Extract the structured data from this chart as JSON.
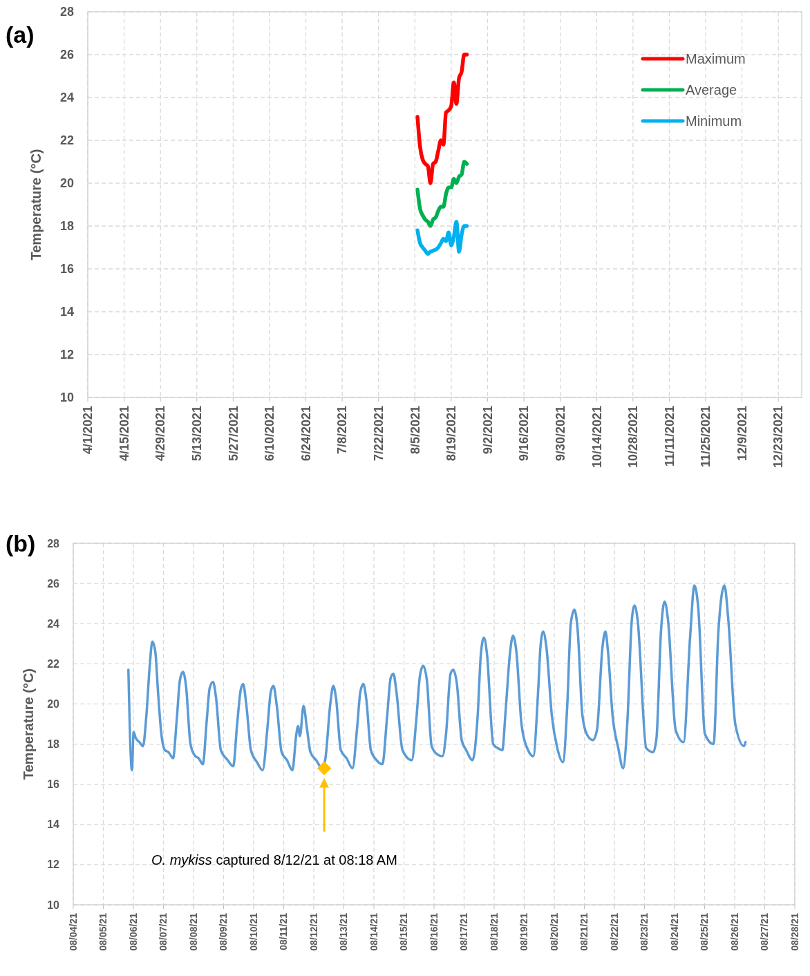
{
  "chart_data": [
    {
      "type": "line",
      "annotations": [
        "(a)"
      ],
      "ylabel": "Temperature (°C)",
      "x": [
        "2021-08-06",
        "2021-08-07",
        "2021-08-08",
        "2021-08-09",
        "2021-08-10",
        "2021-08-11",
        "2021-08-12",
        "2021-08-13",
        "2021-08-14",
        "2021-08-15",
        "2021-08-16",
        "2021-08-17",
        "2021-08-18",
        "2021-08-19",
        "2021-08-20",
        "2021-08-21",
        "2021-08-22",
        "2021-08-23",
        "2021-08-24",
        "2021-08-25"
      ],
      "series": [
        {
          "name": "Maximum",
          "color": "#ff0000",
          "values": [
            23.1,
            21.7,
            21.1,
            20.9,
            20.8,
            20.0,
            20.9,
            21.0,
            21.5,
            22.0,
            21.8,
            23.3,
            23.4,
            23.6,
            24.7,
            23.7,
            24.9,
            25.2,
            26.0,
            26.0
          ]
        },
        {
          "name": "Average",
          "color": "#00b050",
          "values": [
            19.7,
            18.8,
            18.5,
            18.3,
            18.2,
            18.0,
            18.3,
            18.4,
            18.7,
            18.9,
            18.9,
            19.5,
            19.8,
            19.8,
            20.2,
            20.0,
            20.3,
            20.4,
            21.0,
            20.9
          ]
        },
        {
          "name": "Minimum",
          "color": "#00b0f0",
          "values": [
            17.8,
            17.2,
            17.0,
            16.85,
            16.7,
            16.8,
            16.85,
            16.9,
            17.0,
            17.2,
            17.4,
            17.3,
            17.7,
            17.1,
            17.5,
            18.2,
            16.8,
            17.6,
            18.0,
            18.0
          ]
        }
      ],
      "xlim": [
        "2021-04-01",
        "2022-01-01"
      ],
      "ylim": [
        10,
        28
      ],
      "xticks": [
        {
          "value": "2021-04-01",
          "label": "4/1/2021"
        },
        {
          "value": "2021-04-15",
          "label": "4/15/2021"
        },
        {
          "value": "2021-04-29",
          "label": "4/29/2021"
        },
        {
          "value": "2021-05-13",
          "label": "5/13/2021"
        },
        {
          "value": "2021-05-27",
          "label": "5/27/2021"
        },
        {
          "value": "2021-06-10",
          "label": "6/10/2021"
        },
        {
          "value": "2021-06-24",
          "label": "6/24/2021"
        },
        {
          "value": "2021-07-08",
          "label": "7/8/2021"
        },
        {
          "value": "2021-07-22",
          "label": "7/22/2021"
        },
        {
          "value": "2021-08-05",
          "label": "8/5/2021"
        },
        {
          "value": "2021-08-19",
          "label": "8/19/2021"
        },
        {
          "value": "2021-09-02",
          "label": "9/2/2021"
        },
        {
          "value": "2021-09-16",
          "label": "9/16/2021"
        },
        {
          "value": "2021-09-30",
          "label": "9/30/2021"
        },
        {
          "value": "2021-10-14",
          "label": "10/14/2021"
        },
        {
          "value": "2021-10-28",
          "label": "10/28/2021"
        },
        {
          "value": "2021-11-11",
          "label": "11/11/2021"
        },
        {
          "value": "2021-11-25",
          "label": "11/25/2021"
        },
        {
          "value": "2021-12-09",
          "label": "12/9/2021"
        },
        {
          "value": "2021-12-23",
          "label": "12/23/2021"
        }
      ],
      "yticks": [
        10,
        12,
        14,
        16,
        18,
        20,
        22,
        24,
        26,
        28
      ],
      "grid": true,
      "legend": "top right"
    },
    {
      "type": "line",
      "annotations": [
        "(b)",
        "O. mykiss captured 8/12/21 at 08:18 AM"
      ],
      "ylabel": "Temperature (°C)",
      "series": [
        {
          "color": "#5b9bd5",
          "x": [
            "2021-08-05T20:00",
            "2021-08-05T22:50",
            "2021-08-06T00:10",
            "2021-08-06T01:55",
            "2021-08-06T04:48",
            "2021-08-06T07:40",
            "2021-08-06T10:20",
            "2021-08-06T13:10",
            "2021-08-06T15:05",
            "2021-08-06T17:30",
            "2021-08-06T19:40",
            "2021-08-06T22:20",
            "2021-08-07T01:10",
            "2021-08-07T04:05",
            "2021-08-07T07:40",
            "2021-08-07T10:35",
            "2021-08-07T13:10",
            "2021-08-07T15:35",
            "2021-08-07T18:00",
            "2021-08-07T21:35",
            "2021-08-08T01:25",
            "2021-08-08T04:05",
            "2021-08-08T07:25",
            "2021-08-08T10:35",
            "2021-08-08T12:55",
            "2021-08-08T15:35",
            "2021-08-08T18:00",
            "2021-08-08T21:50",
            "2021-08-09T03:20",
            "2021-08-09T07:40",
            "2021-08-09T10:50",
            "2021-08-09T13:40",
            "2021-08-09T15:35",
            "2021-08-09T18:15",
            "2021-08-09T21:50",
            "2021-08-10T02:40",
            "2021-08-10T07:10",
            "2021-08-10T11:00",
            "2021-08-10T13:40",
            "2021-08-10T15:50",
            "2021-08-10T18:30",
            "2021-08-10T22:20",
            "2021-08-11T02:40",
            "2021-08-11T06:55",
            "2021-08-11T10:05",
            "2021-08-11T11:30",
            "2021-08-11T12:55",
            "2021-08-11T15:50",
            "2021-08-11T18:30",
            "2021-08-11T21:20",
            "2021-08-12T01:55",
            "2021-08-12T06:45",
            "2021-08-12T09:20",
            "2021-08-12T13:10",
            "2021-08-12T15:35",
            "2021-08-12T17:45",
            "2021-08-12T21:35",
            "2021-08-13T02:10",
            "2021-08-13T06:55",
            "2021-08-13T10:35",
            "2021-08-13T13:10",
            "2021-08-13T15:35",
            "2021-08-13T18:00",
            "2021-08-13T21:35",
            "2021-08-14T02:10",
            "2021-08-14T06:45",
            "2021-08-14T10:35",
            "2021-08-14T13:25",
            "2021-08-14T15:35",
            "2021-08-14T18:00",
            "2021-08-14T22:50",
            "2021-08-15T06:15",
            "2021-08-15T09:50",
            "2021-08-15T12:45",
            "2021-08-15T15:20",
            "2021-08-15T18:15",
            "2021-08-15T22:05",
            "2021-08-16T02:25",
            "2021-08-16T06:45",
            "2021-08-16T09:35",
            "2021-08-16T13:10",
            "2021-08-16T15:20",
            "2021-08-16T18:15",
            "2021-08-16T22:05",
            "2021-08-17T01:40",
            "2021-08-17T06:45",
            "2021-08-17T10:50",
            "2021-08-17T13:25",
            "2021-08-17T15:50",
            "2021-08-17T18:15",
            "2021-08-17T23:15",
            "2021-08-18T02:55",
            "2021-08-18T06:30",
            "2021-08-18T09:05",
            "2021-08-18T12:45",
            "2021-08-18T15:05",
            "2021-08-18T17:45",
            "2021-08-18T21:50",
            "2021-08-19T03:05",
            "2021-08-19T07:10",
            "2021-08-19T11:15",
            "2021-08-19T12:55",
            "2021-08-19T15:05",
            "2021-08-19T17:45",
            "2021-08-19T22:05",
            "2021-08-20T02:25",
            "2021-08-20T06:55",
            "2021-08-20T10:20",
            "2021-08-20T13:10",
            "2021-08-20T16:05",
            "2021-08-20T18:45",
            "2021-08-20T22:20",
            "2021-08-21T01:55",
            "2021-08-21T06:45",
            "2021-08-21T10:05",
            "2021-08-21T14:25",
            "2021-08-21T16:50",
            "2021-08-21T18:45",
            "2021-08-21T22:35",
            "2021-08-22T03:05",
            "2021-08-22T06:55",
            "2021-08-22T10:20",
            "2021-08-22T13:55",
            "2021-08-22T16:05",
            "2021-08-22T18:30",
            "2021-08-23T01:25",
            "2021-08-23T06:55",
            "2021-08-23T09:35",
            "2021-08-23T13:10",
            "2021-08-23T16:05",
            "2021-08-23T18:45",
            "2021-08-24T00:55",
            "2021-08-24T07:10",
            "2021-08-24T12:30",
            "2021-08-24T15:50",
            "2021-08-24T18:55",
            "2021-08-25T00:15",
            "2021-08-25T07:10",
            "2021-08-25T11:00",
            "2021-08-25T15:50",
            "2021-08-25T18:55",
            "2021-08-26T00:30",
            "2021-08-26T07:25",
            "2021-08-26T08:40"
          ],
          "values": [
            21.7,
            16.7,
            18.6,
            18.3,
            18.1,
            17.9,
            19.4,
            22.0,
            23.1,
            22.6,
            20.6,
            18.5,
            17.7,
            17.6,
            17.3,
            19.2,
            21.2,
            21.6,
            20.9,
            18.0,
            17.4,
            17.3,
            17.0,
            19.2,
            20.8,
            21.1,
            20.3,
            17.7,
            17.2,
            16.9,
            19.0,
            20.7,
            21.0,
            19.9,
            17.7,
            17.1,
            16.7,
            18.8,
            20.6,
            20.9,
            19.9,
            17.6,
            17.2,
            16.7,
            18.5,
            18.9,
            18.4,
            19.9,
            18.8,
            17.6,
            17.2,
            16.8,
            17.3,
            20.0,
            20.9,
            20.3,
            17.7,
            17.3,
            16.8,
            18.8,
            20.6,
            21.0,
            20.2,
            17.7,
            17.2,
            17.0,
            19.4,
            21.3,
            21.5,
            20.6,
            17.7,
            17.2,
            19.2,
            21.4,
            21.9,
            21.2,
            17.9,
            17.5,
            17.4,
            18.5,
            21.5,
            21.7,
            21.0,
            18.2,
            17.7,
            17.2,
            19.4,
            22.5,
            23.3,
            22.5,
            18.0,
            17.8,
            17.7,
            19.6,
            22.6,
            23.4,
            22.6,
            19.0,
            17.7,
            17.4,
            20.8,
            22.8,
            23.6,
            22.8,
            19.4,
            17.8,
            17.1,
            19.9,
            24.0,
            24.7,
            23.6,
            19.5,
            18.5,
            18.2,
            18.7,
            22.8,
            23.6,
            22.7,
            19.4,
            17.8,
            16.8,
            19.1,
            24.2,
            24.9,
            24.2,
            17.8,
            17.6,
            18.3,
            23.6,
            25.1,
            24.2,
            18.7,
            18.1,
            23.4,
            25.9,
            24.8,
            18.5,
            18.0,
            23.6,
            25.9,
            24.2,
            19.0,
            17.9,
            18.1
          ]
        },
        {
          "type": "scatter",
          "color": "#ffc000",
          "marker": "diamond",
          "x": [
            "2021-08-12T08:18"
          ],
          "values": [
            16.8
          ]
        }
      ],
      "xlim": [
        "2021-08-04",
        "2021-08-28"
      ],
      "ylim": [
        10,
        28
      ],
      "xticks": [
        {
          "value": "2021-08-04",
          "label": "08/04/21"
        },
        {
          "value": "2021-08-05",
          "label": "08/05/21"
        },
        {
          "value": "2021-08-06",
          "label": "08/06/21"
        },
        {
          "value": "2021-08-07",
          "label": "08/07/21"
        },
        {
          "value": "2021-08-08",
          "label": "08/08/21"
        },
        {
          "value": "2021-08-09",
          "label": "08/09/21"
        },
        {
          "value": "2021-08-10",
          "label": "08/10/21"
        },
        {
          "value": "2021-08-11",
          "label": "08/11/21"
        },
        {
          "value": "2021-08-12",
          "label": "08/12/21"
        },
        {
          "value": "2021-08-13",
          "label": "08/13/21"
        },
        {
          "value": "2021-08-14",
          "label": "08/14/21"
        },
        {
          "value": "2021-08-15",
          "label": "08/15/21"
        },
        {
          "value": "2021-08-16",
          "label": "08/16/21"
        },
        {
          "value": "2021-08-17",
          "label": "08/17/21"
        },
        {
          "value": "2021-08-18",
          "label": "08/18/21"
        },
        {
          "value": "2021-08-19",
          "label": "08/19/21"
        },
        {
          "value": "2021-08-20",
          "label": "08/20/21"
        },
        {
          "value": "2021-08-21",
          "label": "08/21/21"
        },
        {
          "value": "2021-08-22",
          "label": "08/22/21"
        },
        {
          "value": "2021-08-23",
          "label": "08/23/21"
        },
        {
          "value": "2021-08-24",
          "label": "08/24/21"
        },
        {
          "value": "2021-08-25",
          "label": "08/25/21"
        },
        {
          "value": "2021-08-26",
          "label": "08/26/21"
        },
        {
          "value": "2021-08-27",
          "label": "08/27/21"
        },
        {
          "value": "2021-08-28",
          "label": "08/28/21"
        }
      ],
      "yticks": [
        10,
        12,
        14,
        16,
        18,
        20,
        22,
        24,
        26,
        28
      ],
      "grid": true
    }
  ]
}
